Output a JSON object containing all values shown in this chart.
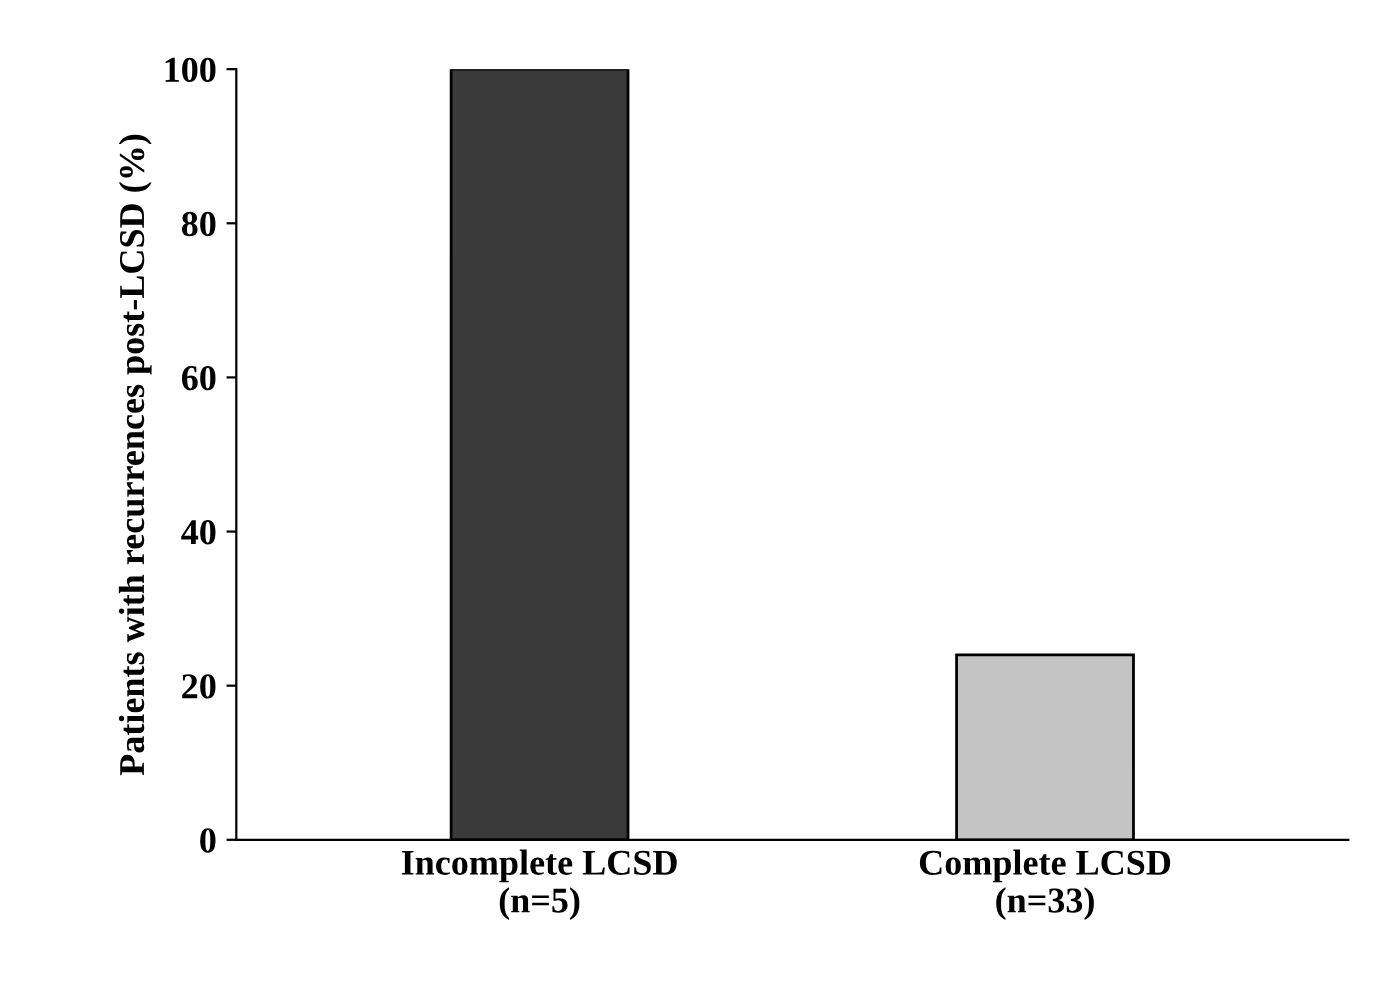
{
  "chart_data": {
    "type": "bar",
    "ylabel": "Patients with recurrences post-LCSD (%)",
    "categories": [
      "Incomplete LCSD\n(n=5)",
      "Complete LCSD\n(n=33)"
    ],
    "values": [
      100,
      24
    ],
    "colors": [
      "#3a3a3a",
      "#c4c4c4"
    ],
    "ylim": [
      0,
      100
    ],
    "yticks": [
      0,
      20,
      40,
      60,
      80,
      100
    ],
    "grid": false
  }
}
